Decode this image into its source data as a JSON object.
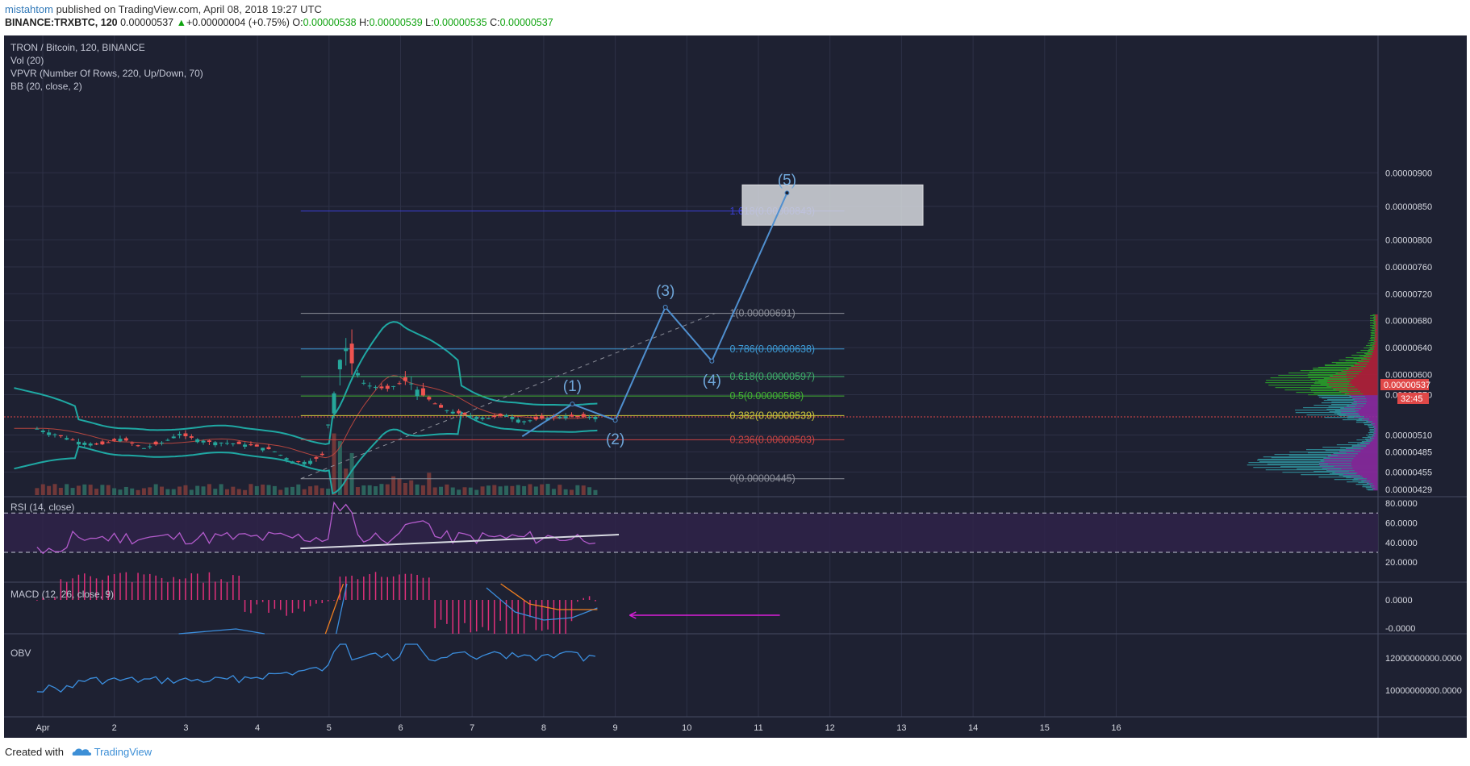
{
  "header": {
    "user": "mistahtom",
    "published": " published on TradingView.com, April 08, 2018 19:27 UTC",
    "symbol": "BINANCE:TRXBTC, 120",
    "last": "0.00000537",
    "change_arrow": "▲",
    "change": "+0.00000004 (+0.75%)",
    "o_label": "O:",
    "o": "0.00000538",
    "h_label": "H:",
    "h": "0.00000539",
    "l_label": "L:",
    "l": "0.00000535",
    "c_label": "C:",
    "c": "0.00000537"
  },
  "legend": {
    "title": "TRON / Bitcoin, 120, BINANCE",
    "vol": "Vol (20)",
    "vpvr": "VPVR (Number Of Rows, 220, Up/Down, 70)",
    "bb": "BB (20, close, 2)",
    "rsi": "RSI (14, close)",
    "macd": "MACD (12, 26, close, 9)",
    "obv": "OBV"
  },
  "footer": {
    "created_with": "Created with",
    "brand": "TradingView"
  },
  "colors": {
    "background": "#1e2132",
    "grid": "#2d3146",
    "up": "#26a69a",
    "down": "#ef5350",
    "bb_band": "#1fa8a3",
    "bb_basis": "#b5453e",
    "wave": "#4f8fcf",
    "rsi": "#b35bcc",
    "macd_line": "#3b8ede",
    "signal_line": "#f07f20",
    "obv": "#3b8ede",
    "price_tag": "#e04848"
  },
  "chart_data": [
    {
      "type": "candlestick",
      "title": "TRON / Bitcoin, 120, BINANCE",
      "x_ticks": [
        "Apr",
        "2",
        "3",
        "4",
        "5",
        "6",
        "7",
        "8",
        "9",
        "10",
        "11",
        "12",
        "13",
        "14",
        "15",
        "16"
      ],
      "y_ticks": [
        "0.00000900",
        "0.00000850",
        "0.00000800",
        "0.00000760",
        "0.00000720",
        "0.00000680",
        "0.00000640",
        "0.00000600",
        "0.00000570",
        "0.00000510",
        "0.00000485",
        "0.00000455",
        "0.00000429"
      ],
      "last_price": "0.00000537",
      "countdown": "32:45",
      "close_path": [
        [
          0.9,
          520
        ],
        [
          1.2,
          510
        ],
        [
          1.5,
          500
        ],
        [
          1.8,
          495
        ],
        [
          2.1,
          505
        ],
        [
          2.4,
          490
        ],
        [
          2.7,
          500
        ],
        [
          2.9,
          512
        ],
        [
          3.0,
          508
        ],
        [
          3.3,
          500
        ],
        [
          3.6,
          498
        ],
        [
          3.9,
          495
        ],
        [
          4.2,
          488
        ],
        [
          4.5,
          470
        ],
        [
          4.7,
          470
        ],
        [
          4.9,
          478
        ],
        [
          5.05,
          560
        ],
        [
          5.2,
          650
        ],
        [
          5.3,
          620
        ],
        [
          5.5,
          585
        ],
        [
          5.8,
          578
        ],
        [
          6.1,
          592
        ],
        [
          6.3,
          570
        ],
        [
          6.6,
          548
        ],
        [
          6.9,
          540
        ],
        [
          7.2,
          535
        ],
        [
          7.5,
          540
        ],
        [
          7.7,
          530
        ],
        [
          8.0,
          535
        ],
        [
          8.3,
          538
        ],
        [
          8.6,
          537
        ],
        [
          8.75,
          537
        ]
      ],
      "fib_levels": [
        {
          "label": "1(0.00000691)",
          "value": 691
        },
        {
          "label": "0.786(0.00000638)",
          "value": 638
        },
        {
          "label": "0.618(0.00000597)",
          "value": 597
        },
        {
          "label": "0.5(0.00000568)",
          "value": 568
        },
        {
          "label": "0.382(0.00000539)",
          "value": 539
        },
        {
          "label": "0.236(0.00000503)",
          "value": 503
        },
        {
          "label": "0(0.00000445)",
          "value": 445
        },
        {
          "label": "1.618(0.00000843)",
          "value": 843
        }
      ],
      "wave_labels": [
        {
          "label": "(1)",
          "x": 8.4,
          "value": 556
        },
        {
          "label": "(2)",
          "x": 9.0,
          "value": 532
        },
        {
          "label": "(3)",
          "x": 9.7,
          "value": 700
        },
        {
          "label": "(4)",
          "x": 10.35,
          "value": 620
        },
        {
          "label": "(5)",
          "x": 11.4,
          "value": 870
        }
      ]
    },
    {
      "type": "line",
      "title": "RSI (14, close)",
      "y_ticks": [
        "80.0000",
        "60.0000",
        "40.0000",
        "20.0000"
      ],
      "levels": [
        70,
        30
      ]
    },
    {
      "type": "bar",
      "title": "MACD (12, 26, close, 9)",
      "y_ticks": [
        "0.0000",
        "-0.0000"
      ]
    },
    {
      "type": "line",
      "title": "OBV",
      "y_ticks": [
        "12000000000.0000",
        "10000000000.0000"
      ]
    }
  ]
}
